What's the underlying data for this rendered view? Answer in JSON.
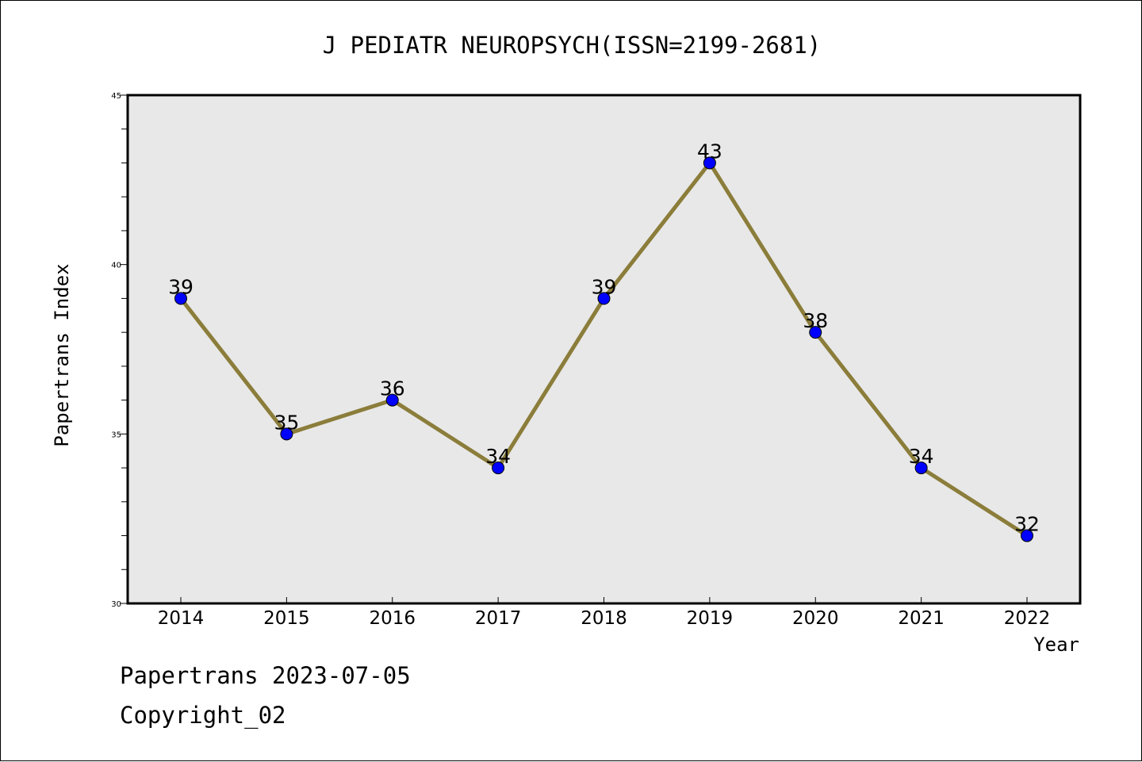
{
  "chart_data": {
    "type": "line",
    "title": "J PEDIATR NEUROPSYCH(ISSN=2199-2681)",
    "xlabel": "Year",
    "ylabel": "Papertrans Index",
    "categories": [
      "2014",
      "2015",
      "2016",
      "2017",
      "2018",
      "2019",
      "2020",
      "2021",
      "2022"
    ],
    "values": [
      39,
      35,
      36,
      34,
      39,
      43,
      38,
      34,
      32
    ],
    "data_labels": [
      "39",
      "35",
      "36",
      "34",
      "39",
      "43",
      "38",
      "34",
      "32"
    ],
    "ylim": [
      30,
      45
    ],
    "y_ticks": [
      30,
      35,
      40,
      45
    ],
    "y_tick_labels": [
      "30",
      "35",
      "40",
      "45"
    ],
    "y_minor_step": 1,
    "grid": false,
    "legend": "none",
    "colors": {
      "line": "#8B7D3A",
      "marker": "#0000FF",
      "plot_background": "#E8E8E8"
    }
  },
  "footer": {
    "line1": "Papertrans 2023-07-05",
    "line2": "Copyright_02"
  }
}
